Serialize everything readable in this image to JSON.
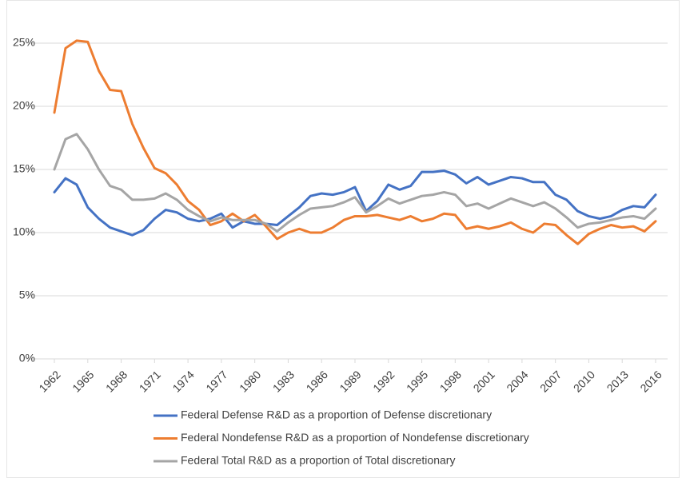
{
  "chart_data": {
    "type": "line",
    "x": [
      1962,
      1963,
      1964,
      1965,
      1966,
      1967,
      1968,
      1969,
      1970,
      1971,
      1972,
      1973,
      1974,
      1975,
      1976,
      1977,
      1978,
      1979,
      1980,
      1981,
      1982,
      1983,
      1984,
      1985,
      1986,
      1987,
      1988,
      1989,
      1990,
      1991,
      1992,
      1993,
      1994,
      1995,
      1996,
      1997,
      1998,
      1999,
      2000,
      2001,
      2002,
      2003,
      2004,
      2005,
      2006,
      2007,
      2008,
      2009,
      2010,
      2011,
      2012,
      2013,
      2014,
      2015,
      2016
    ],
    "series": [
      {
        "name": "Federal Defense R&D as a proportion of Defense discretionary",
        "color": "#4472c4",
        "values": [
          13.2,
          14.3,
          13.8,
          12.0,
          11.1,
          10.4,
          10.1,
          9.8,
          10.2,
          11.1,
          11.8,
          11.6,
          11.1,
          10.9,
          11.1,
          11.5,
          10.4,
          10.9,
          10.7,
          10.7,
          10.6,
          11.3,
          12.0,
          12.9,
          13.1,
          13.0,
          13.2,
          13.6,
          11.7,
          12.5,
          13.8,
          13.4,
          13.7,
          14.8,
          14.8,
          14.9,
          14.6,
          13.9,
          14.4,
          13.8,
          14.1,
          14.4,
          14.3,
          14.0,
          14.0,
          13.0,
          12.6,
          11.7,
          11.3,
          11.1,
          11.3,
          11.8,
          12.1,
          12.0,
          13.0
        ]
      },
      {
        "name": "Federal Nondefense R&D as a proportion of Nondefense discretionary",
        "color": "#ed7d31",
        "values": [
          19.5,
          24.6,
          25.2,
          25.1,
          22.8,
          21.3,
          21.2,
          18.6,
          16.7,
          15.1,
          14.7,
          13.8,
          12.5,
          11.8,
          10.6,
          10.9,
          11.5,
          10.9,
          11.4,
          10.5,
          9.5,
          10.0,
          10.3,
          10.0,
          10.0,
          10.4,
          11.0,
          11.3,
          11.3,
          11.4,
          11.2,
          11.0,
          11.3,
          10.9,
          11.1,
          11.5,
          11.4,
          10.3,
          10.5,
          10.3,
          10.5,
          10.8,
          10.3,
          10.0,
          10.7,
          10.6,
          9.8,
          9.1,
          9.9,
          10.3,
          10.6,
          10.4,
          10.5,
          10.1,
          10.9
        ]
      },
      {
        "name": "Federal Total R&D as a proportion of Total discretionary",
        "color": "#a5a5a5",
        "values": [
          15.0,
          17.4,
          17.8,
          16.6,
          15.0,
          13.7,
          13.4,
          12.6,
          12.6,
          12.7,
          13.1,
          12.6,
          11.8,
          11.3,
          10.9,
          11.2,
          11.0,
          11.0,
          11.0,
          10.7,
          10.1,
          10.8,
          11.4,
          11.9,
          12.0,
          12.1,
          12.4,
          12.8,
          11.6,
          12.1,
          12.7,
          12.3,
          12.6,
          12.9,
          13.0,
          13.2,
          13.0,
          12.1,
          12.3,
          11.9,
          12.3,
          12.7,
          12.4,
          12.1,
          12.4,
          11.9,
          11.2,
          10.4,
          10.7,
          10.8,
          11.0,
          11.2,
          11.3,
          11.1,
          11.9
        ]
      }
    ],
    "xlim": [
      1962,
      2016
    ],
    "xticks": [
      1962,
      1965,
      1968,
      1971,
      1974,
      1977,
      1980,
      1983,
      1986,
      1989,
      1992,
      1995,
      1998,
      2001,
      2004,
      2007,
      2010,
      2013,
      2016
    ],
    "ylim": [
      0,
      25
    ],
    "yticks": [
      {
        "value": 0,
        "label": "0%"
      },
      {
        "value": 5,
        "label": "5%"
      },
      {
        "value": 10,
        "label": "10%"
      },
      {
        "value": 15,
        "label": "15%"
      },
      {
        "value": 20,
        "label": "20%"
      },
      {
        "value": 25,
        "label": "25%"
      }
    ],
    "grid": true,
    "legend": "bottom"
  }
}
